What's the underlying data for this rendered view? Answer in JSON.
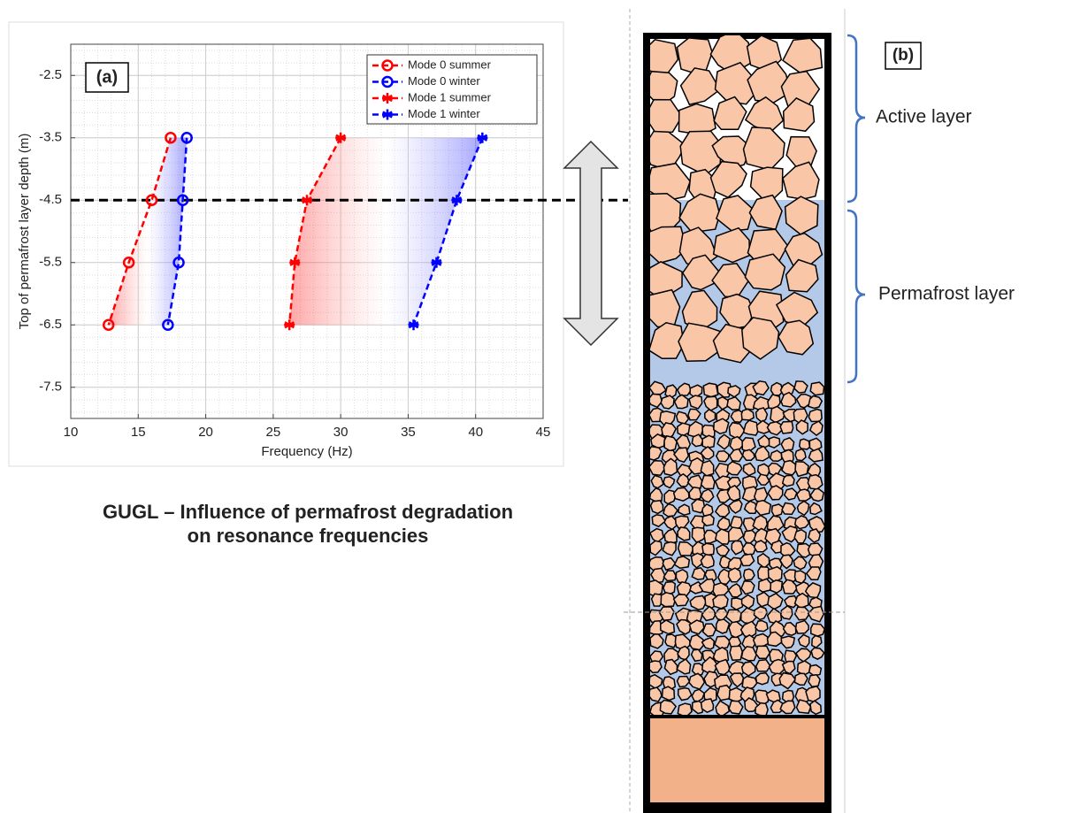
{
  "chart_data": {
    "type": "line",
    "panel_label": "(a)",
    "xlabel": "Frequency (Hz)",
    "ylabel": "Top of permafrost layer depth (m)",
    "xlim": [
      10,
      45
    ],
    "xticks": [
      10,
      15,
      20,
      25,
      30,
      35,
      40,
      45
    ],
    "ylim": [
      -8,
      -2
    ],
    "yticks": [
      -2.5,
      -3.5,
      -4.5,
      -5.5,
      -6.5,
      -7.5
    ],
    "grid": true,
    "minor_grid": true,
    "legend": "northeast",
    "hline": -4.5,
    "series": [
      {
        "name": "Mode 0 summer",
        "color": "#ff0000",
        "marker": "o",
        "x": [
          17.4,
          16.0,
          14.3,
          12.8
        ],
        "values": [
          -3.5,
          -4.5,
          -5.5,
          -6.5
        ]
      },
      {
        "name": "Mode 0 winter",
        "color": "#0000ff",
        "marker": "o",
        "x": [
          18.6,
          18.3,
          18.0,
          17.2
        ],
        "values": [
          -3.5,
          -4.5,
          -5.5,
          -6.5
        ]
      },
      {
        "name": "Mode 1 summer",
        "color": "#ff0000",
        "marker": "*",
        "x": [
          30.0,
          27.5,
          26.6,
          26.2
        ],
        "values": [
          -3.5,
          -4.5,
          -5.5,
          -6.5
        ]
      },
      {
        "name": "Mode 1 winter",
        "color": "#0000ff",
        "marker": "*",
        "x": [
          40.5,
          38.6,
          37.1,
          35.4
        ],
        "values": [
          -3.5,
          -4.5,
          -5.5,
          -6.5
        ]
      }
    ],
    "shaded_pairs": [
      [
        0,
        1
      ],
      [
        2,
        3
      ]
    ]
  },
  "caption": [
    "GUGL – Influence of permafrost degradation",
    "on resonance frequencies"
  ],
  "diagram": {
    "panel_label": "(b)",
    "layers": [
      "Active layer",
      "Permafrost layer"
    ]
  }
}
